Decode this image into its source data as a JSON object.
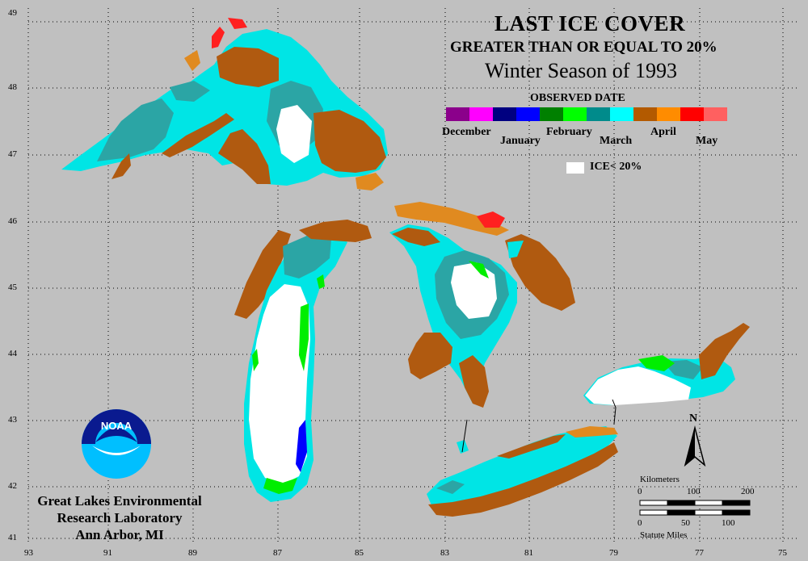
{
  "title": {
    "line1": "LAST ICE COVER",
    "line2": "GREATER THAN OR EQUAL TO 20%",
    "line3": "Winter Season of 1993"
  },
  "legend": {
    "title": "OBSERVED DATE",
    "months": [
      {
        "label": "December",
        "colors": [
          "#8b008b",
          "#ff00ff"
        ]
      },
      {
        "label": "January",
        "colors": [
          "#000080",
          "#0000ff"
        ]
      },
      {
        "label": "February",
        "colors": [
          "#008000",
          "#00ff00"
        ]
      },
      {
        "label": "March",
        "colors": [
          "#008b8b",
          "#00ffff"
        ]
      },
      {
        "label": "April",
        "colors": [
          "#b35a00",
          "#ff8c00"
        ]
      },
      {
        "label": "May",
        "colors": [
          "#ff0000",
          "#ff6060"
        ]
      }
    ],
    "no_ice_label": "ICE< 20%"
  },
  "axes": {
    "latitudes": [
      "49",
      "48",
      "47",
      "46",
      "45",
      "44",
      "43",
      "42",
      "41"
    ],
    "longitudes": [
      "93",
      "91",
      "89",
      "87",
      "85",
      "83",
      "81",
      "79",
      "77",
      "75"
    ]
  },
  "organization": {
    "line1": "Great Lakes Environmental",
    "line2": "Research Laboratory",
    "line3": "Ann Arbor, MI"
  },
  "logo_text": "NOAA",
  "north_label": "N",
  "scale": {
    "km_title": "Kilometers",
    "km_ticks": [
      "0",
      "100",
      "200"
    ],
    "mi_ticks": [
      "0",
      "50",
      "100"
    ],
    "mi_title": "Statute Miles"
  },
  "colors": {
    "background": "#c0c0c0",
    "land_gap": "#c0c0c0",
    "ice_below_20": "#ffffff",
    "march_light": "#00e5e5",
    "march_dark": "#2ba5a5",
    "april": "#b05a10",
    "april_light": "#e08a20",
    "may": "#ff2020",
    "february": "#00ee00",
    "january": "#0000ff"
  }
}
